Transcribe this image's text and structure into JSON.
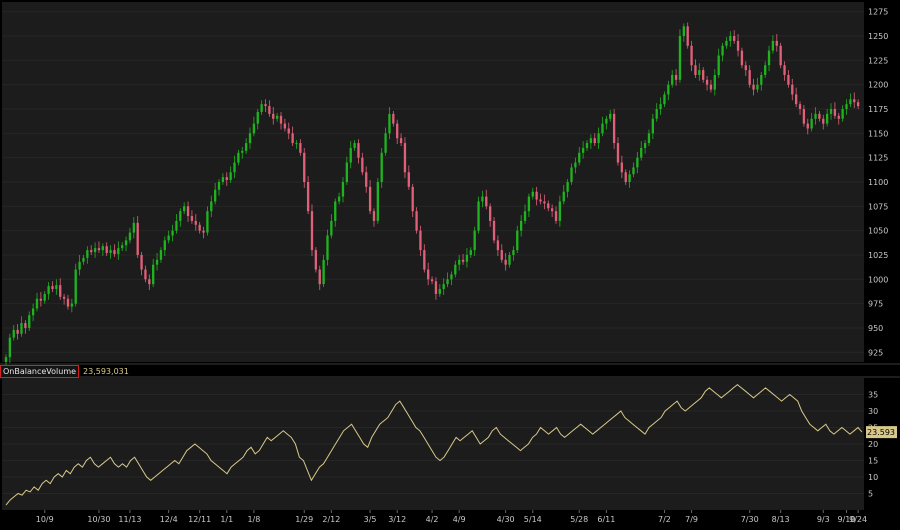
{
  "chart_data": [
    {
      "type": "candlestick",
      "title": "",
      "ylim": [
        915,
        1285
      ],
      "y_ticks": [
        925,
        950,
        975,
        1000,
        1025,
        1050,
        1075,
        1100,
        1125,
        1150,
        1175,
        1200,
        1225,
        1250,
        1275
      ],
      "x_tick_labels": [
        "10/9",
        "10/30",
        "11/13",
        "12/4",
        "12/11",
        "1/1",
        "1/8",
        "1/29",
        "2/12",
        "3/5",
        "3/12",
        "4/2",
        "4/9",
        "4/30",
        "5/14",
        "5/28",
        "6/11",
        "7/2",
        "7/9",
        "7/30",
        "8/13",
        "9/3",
        "9/10",
        "9/24"
      ],
      "x_tick_bar_index": [
        10,
        24,
        32,
        42,
        50,
        57,
        64,
        77,
        84,
        94,
        101,
        110,
        117,
        129,
        136,
        148,
        155,
        170,
        177,
        192,
        200,
        211,
        217,
        227
      ],
      "up_color": "#1fb31f",
      "down_color": "#e0607a",
      "closes": [
        920,
        940,
        948,
        944,
        955,
        950,
        963,
        970,
        980,
        978,
        985,
        993,
        990,
        994,
        982,
        980,
        972,
        975,
        1010,
        1018,
        1022,
        1030,
        1028,
        1032,
        1030,
        1034,
        1027,
        1030,
        1026,
        1032,
        1035,
        1040,
        1048,
        1058,
        1025,
        1010,
        1000,
        995,
        1015,
        1020,
        1030,
        1040,
        1045,
        1050,
        1060,
        1070,
        1075,
        1065,
        1060,
        1056,
        1050,
        1048,
        1070,
        1080,
        1092,
        1100,
        1105,
        1102,
        1110,
        1120,
        1130,
        1132,
        1140,
        1150,
        1160,
        1172,
        1180,
        1178,
        1170,
        1165,
        1168,
        1160,
        1155,
        1150,
        1140,
        1140,
        1130,
        1100,
        1070,
        1030,
        1010,
        995,
        1020,
        1045,
        1060,
        1080,
        1085,
        1100,
        1120,
        1135,
        1140,
        1125,
        1110,
        1095,
        1070,
        1060,
        1100,
        1130,
        1150,
        1170,
        1160,
        1145,
        1140,
        1110,
        1095,
        1070,
        1050,
        1030,
        1010,
        1000,
        998,
        985,
        990,
        995,
        1000,
        1005,
        1015,
        1020,
        1018,
        1025,
        1030,
        1050,
        1080,
        1085,
        1075,
        1060,
        1040,
        1030,
        1020,
        1015,
        1025,
        1030,
        1050,
        1060,
        1070,
        1085,
        1090,
        1082,
        1080,
        1078,
        1073,
        1070,
        1060,
        1080,
        1090,
        1100,
        1115,
        1120,
        1130,
        1135,
        1140,
        1145,
        1140,
        1150,
        1160,
        1165,
        1170,
        1140,
        1120,
        1110,
        1100,
        1108,
        1115,
        1125,
        1135,
        1140,
        1150,
        1165,
        1175,
        1180,
        1190,
        1200,
        1210,
        1205,
        1250,
        1260,
        1240,
        1220,
        1210,
        1215,
        1205,
        1200,
        1195,
        1210,
        1230,
        1240,
        1245,
        1250,
        1245,
        1235,
        1220,
        1215,
        1200,
        1195,
        1200,
        1210,
        1220,
        1235,
        1245,
        1240,
        1220,
        1210,
        1200,
        1190,
        1180,
        1175,
        1160,
        1155,
        1165,
        1170,
        1165,
        1160,
        1170,
        1175,
        1168,
        1165,
        1175,
        1180,
        1185,
        1182,
        1178
      ]
    },
    {
      "type": "line",
      "title": "OnBalanceVolume",
      "current_value": "23,593,031",
      "last_label": "23.593",
      "line_color": "#d8c98a",
      "ylim": [
        0,
        40
      ],
      "y_ticks": [
        5,
        10,
        15,
        20,
        25,
        30,
        35
      ],
      "values_millions": [
        1.5,
        3,
        4,
        5,
        4.5,
        6,
        5.5,
        7,
        6,
        8,
        9,
        8,
        10,
        11,
        10,
        12,
        11,
        13,
        14,
        13,
        15,
        16,
        14,
        13,
        14,
        15,
        16,
        14,
        13,
        14,
        13,
        15,
        16,
        14,
        12,
        10,
        9,
        10,
        11,
        12,
        13,
        14,
        15,
        14,
        16,
        18,
        19,
        20,
        19,
        18,
        17,
        15,
        14,
        13,
        12,
        11,
        13,
        14,
        15,
        16,
        18,
        19,
        17,
        18,
        20,
        22,
        21,
        22,
        23,
        24,
        23,
        22,
        20,
        16,
        15,
        12,
        9,
        11,
        13,
        14,
        16,
        18,
        20,
        22,
        24,
        25,
        26,
        24,
        22,
        20,
        19,
        22,
        24,
        26,
        27,
        28,
        30,
        32,
        33,
        31,
        29,
        27,
        25,
        24,
        22,
        20,
        18,
        16,
        15,
        16,
        18,
        20,
        22,
        21,
        22,
        23,
        24,
        22,
        20,
        21,
        22,
        24,
        25,
        23,
        22,
        21,
        20,
        19,
        18,
        19,
        20,
        22,
        23,
        25,
        24,
        23,
        24,
        25,
        23,
        22,
        23,
        24,
        25,
        26,
        25,
        24,
        23,
        24,
        25,
        26,
        27,
        28,
        29,
        30,
        28,
        27,
        26,
        25,
        24,
        23,
        25,
        26,
        27,
        28,
        30,
        31,
        32,
        33,
        31,
        30,
        31,
        32,
        33,
        34,
        36,
        37,
        36,
        35,
        34,
        35,
        36,
        37,
        38,
        37,
        36,
        35,
        34,
        35,
        36,
        37,
        36,
        35,
        34,
        33,
        34,
        35,
        34,
        33,
        30,
        28,
        26,
        25,
        24,
        25,
        26,
        24,
        23,
        24,
        25,
        24,
        23,
        24,
        25,
        23.6
      ]
    }
  ]
}
